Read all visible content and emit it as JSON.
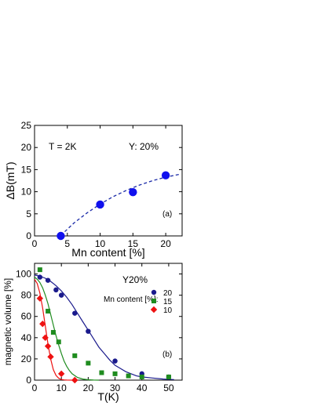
{
  "chart_data": [
    {
      "type": "scatter",
      "panel_label": "(a)",
      "xlabel": "Mn content [%]",
      "ylabel": "ΔB(mT)",
      "xlim": [
        0,
        22.5
      ],
      "ylim": [
        0,
        25
      ],
      "xticks": [
        0,
        5,
        10,
        15,
        20
      ],
      "yticks": [
        0,
        5,
        10,
        15,
        20,
        25
      ],
      "annotations": [
        "T = 2K",
        "Y: 20%"
      ],
      "colors": {
        "points": "#1010ee",
        "fit": "#1a2aa8"
      },
      "points": [
        {
          "x": 4,
          "y": 0
        },
        {
          "x": 10,
          "y": 7.1
        },
        {
          "x": 15,
          "y": 9.9
        },
        {
          "x": 20,
          "y": 13.7
        }
      ],
      "fit_curve": {
        "style": "dashed",
        "x": [
          4,
          6,
          8,
          10,
          12,
          14,
          16,
          18,
          20,
          22
        ],
        "y": [
          0.1,
          2.9,
          5.2,
          7.2,
          8.9,
          10.3,
          11.5,
          12.5,
          13.3,
          13.9
        ]
      }
    },
    {
      "type": "scatter",
      "panel_label": "(b)",
      "xlabel": "T(K)",
      "ylabel": "magnetic volume [%]",
      "xlim": [
        0,
        55
      ],
      "ylim": [
        0,
        110
      ],
      "xticks": [
        0,
        10,
        20,
        30,
        40,
        50
      ],
      "yticks": [
        0,
        20,
        40,
        60,
        80,
        100
      ],
      "annotations": [
        "Y20%"
      ],
      "legend_title": "Mn content [%]:",
      "legend_position": "top-right",
      "series": [
        {
          "name": "20",
          "color": "#1a1a8c",
          "marker": "circle",
          "x": [
            2,
            5,
            8,
            10,
            15,
            20,
            30,
            40,
            50
          ],
          "y": [
            97,
            94,
            85,
            80,
            63,
            46,
            18,
            6,
            3
          ],
          "fit_x": [
            0,
            2,
            4,
            6,
            8,
            10,
            12,
            14,
            16,
            18,
            20,
            22,
            24,
            26,
            28,
            30,
            32,
            34,
            36,
            38,
            40,
            44,
            48,
            52
          ],
          "fit_y": [
            99,
            98,
            96,
            93,
            89,
            84,
            78,
            71,
            63,
            55,
            47,
            39,
            31,
            25,
            19,
            14,
            11,
            8,
            6,
            4,
            3,
            2,
            1,
            0.5
          ]
        },
        {
          "name": "15",
          "color": "#1f8c1f",
          "marker": "square",
          "x": [
            2,
            5,
            7,
            9,
            15,
            20,
            25,
            30,
            35,
            40,
            50
          ],
          "y": [
            104,
            65,
            45,
            36,
            23,
            16,
            7,
            6,
            4,
            3,
            3
          ],
          "fit_x": [
            0,
            1,
            2,
            3,
            4,
            5,
            6,
            7,
            8,
            9,
            10,
            11,
            12,
            13,
            14,
            16,
            18,
            20,
            22,
            24
          ],
          "fit_y": [
            97,
            95,
            92,
            87,
            80,
            72,
            62,
            52,
            42,
            33,
            25,
            18,
            13,
            9,
            6,
            2.5,
            1,
            0.4,
            0.1,
            0
          ]
        },
        {
          "name": "10",
          "color": "#ee1111",
          "marker": "diamond",
          "x": [
            2,
            3,
            4,
            5,
            6,
            10,
            15
          ],
          "y": [
            77,
            53,
            40,
            32,
            22,
            6,
            0
          ],
          "fit_x": [
            0,
            1,
            2,
            3,
            4,
            5,
            6,
            7,
            8,
            9,
            10,
            11,
            12,
            14
          ],
          "fit_y": [
            95,
            91,
            82,
            68,
            51,
            34,
            20,
            10,
            4.5,
            1.8,
            0.6,
            0.2,
            0.05,
            0
          ]
        }
      ]
    }
  ]
}
